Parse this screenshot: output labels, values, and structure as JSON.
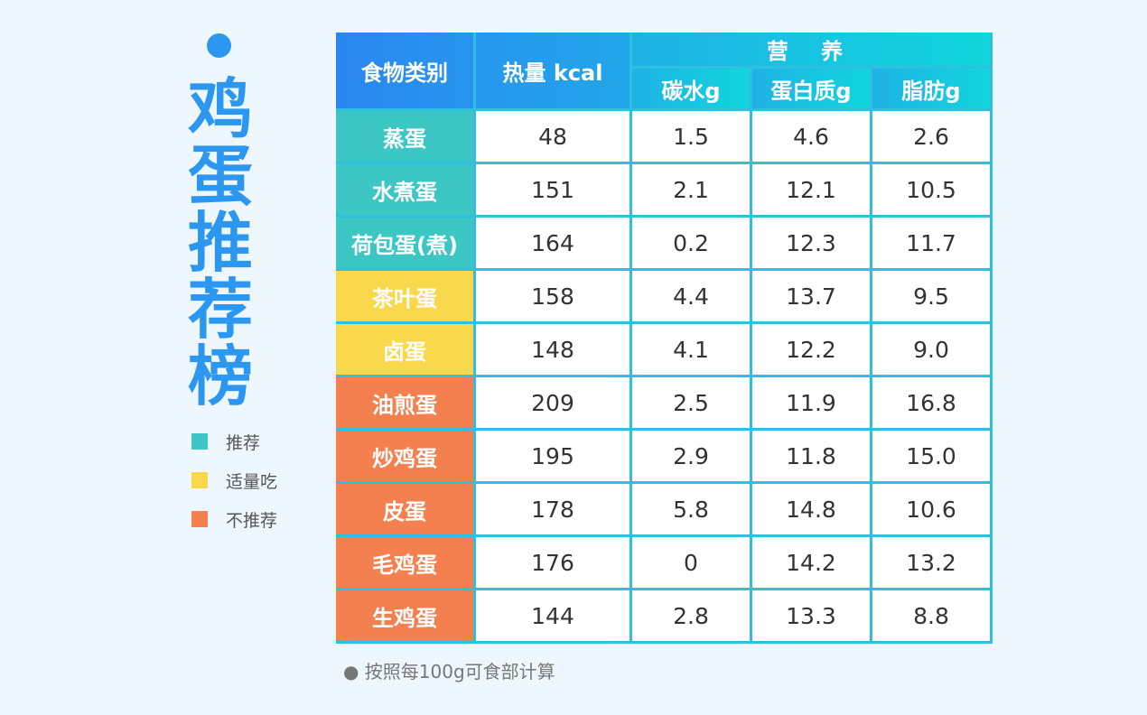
{
  "title_chars": [
    "鸡",
    "蛋",
    "推",
    "荐",
    "榜"
  ],
  "legend": [
    {
      "label": "推荐",
      "color": "#3cc6c4",
      "class": "rec"
    },
    {
      "label": "适量吃",
      "color": "#f9d84c",
      "class": "mod"
    },
    {
      "label": "不推荐",
      "color": "#f47f4f",
      "class": "not"
    }
  ],
  "table": {
    "col_category": "食物类别",
    "col_calories": "热量 kcal",
    "group_nutrition": "营 养",
    "col_carbs": "碳水g",
    "col_protein": "蛋白质g",
    "col_fat": "脂肪g"
  },
  "footnote": "● 按照每100g可食部计算",
  "chart_data": {
    "type": "table",
    "columns": [
      "食物类别",
      "热量 kcal",
      "碳水g",
      "蛋白质g",
      "脂肪g"
    ],
    "rows": [
      {
        "name": "蒸蛋",
        "rating": "推荐",
        "kcal": "48",
        "carbs": "1.5",
        "protein": "4.6",
        "fat": "2.6"
      },
      {
        "name": "水煮蛋",
        "rating": "推荐",
        "kcal": "151",
        "carbs": "2.1",
        "protein": "12.1",
        "fat": "10.5"
      },
      {
        "name": "荷包蛋(煮)",
        "rating": "推荐",
        "kcal": "164",
        "carbs": "0.2",
        "protein": "12.3",
        "fat": "11.7"
      },
      {
        "name": "茶叶蛋",
        "rating": "适量吃",
        "kcal": "158",
        "carbs": "4.4",
        "protein": "13.7",
        "fat": "9.5"
      },
      {
        "name": "卤蛋",
        "rating": "适量吃",
        "kcal": "148",
        "carbs": "4.1",
        "protein": "12.2",
        "fat": "9.0"
      },
      {
        "name": "油煎蛋",
        "rating": "不推荐",
        "kcal": "209",
        "carbs": "2.5",
        "protein": "11.9",
        "fat": "16.8"
      },
      {
        "name": "炒鸡蛋",
        "rating": "不推荐",
        "kcal": "195",
        "carbs": "2.9",
        "protein": "11.8",
        "fat": "15.0"
      },
      {
        "name": "皮蛋",
        "rating": "不推荐",
        "kcal": "178",
        "carbs": "5.8",
        "protein": "14.8",
        "fat": "10.6"
      },
      {
        "name": "毛鸡蛋",
        "rating": "不推荐",
        "kcal": "176",
        "carbs": "0",
        "protein": "14.2",
        "fat": "13.2"
      },
      {
        "name": "生鸡蛋",
        "rating": "不推荐",
        "kcal": "144",
        "carbs": "2.8",
        "protein": "13.3",
        "fat": "8.8"
      }
    ]
  }
}
